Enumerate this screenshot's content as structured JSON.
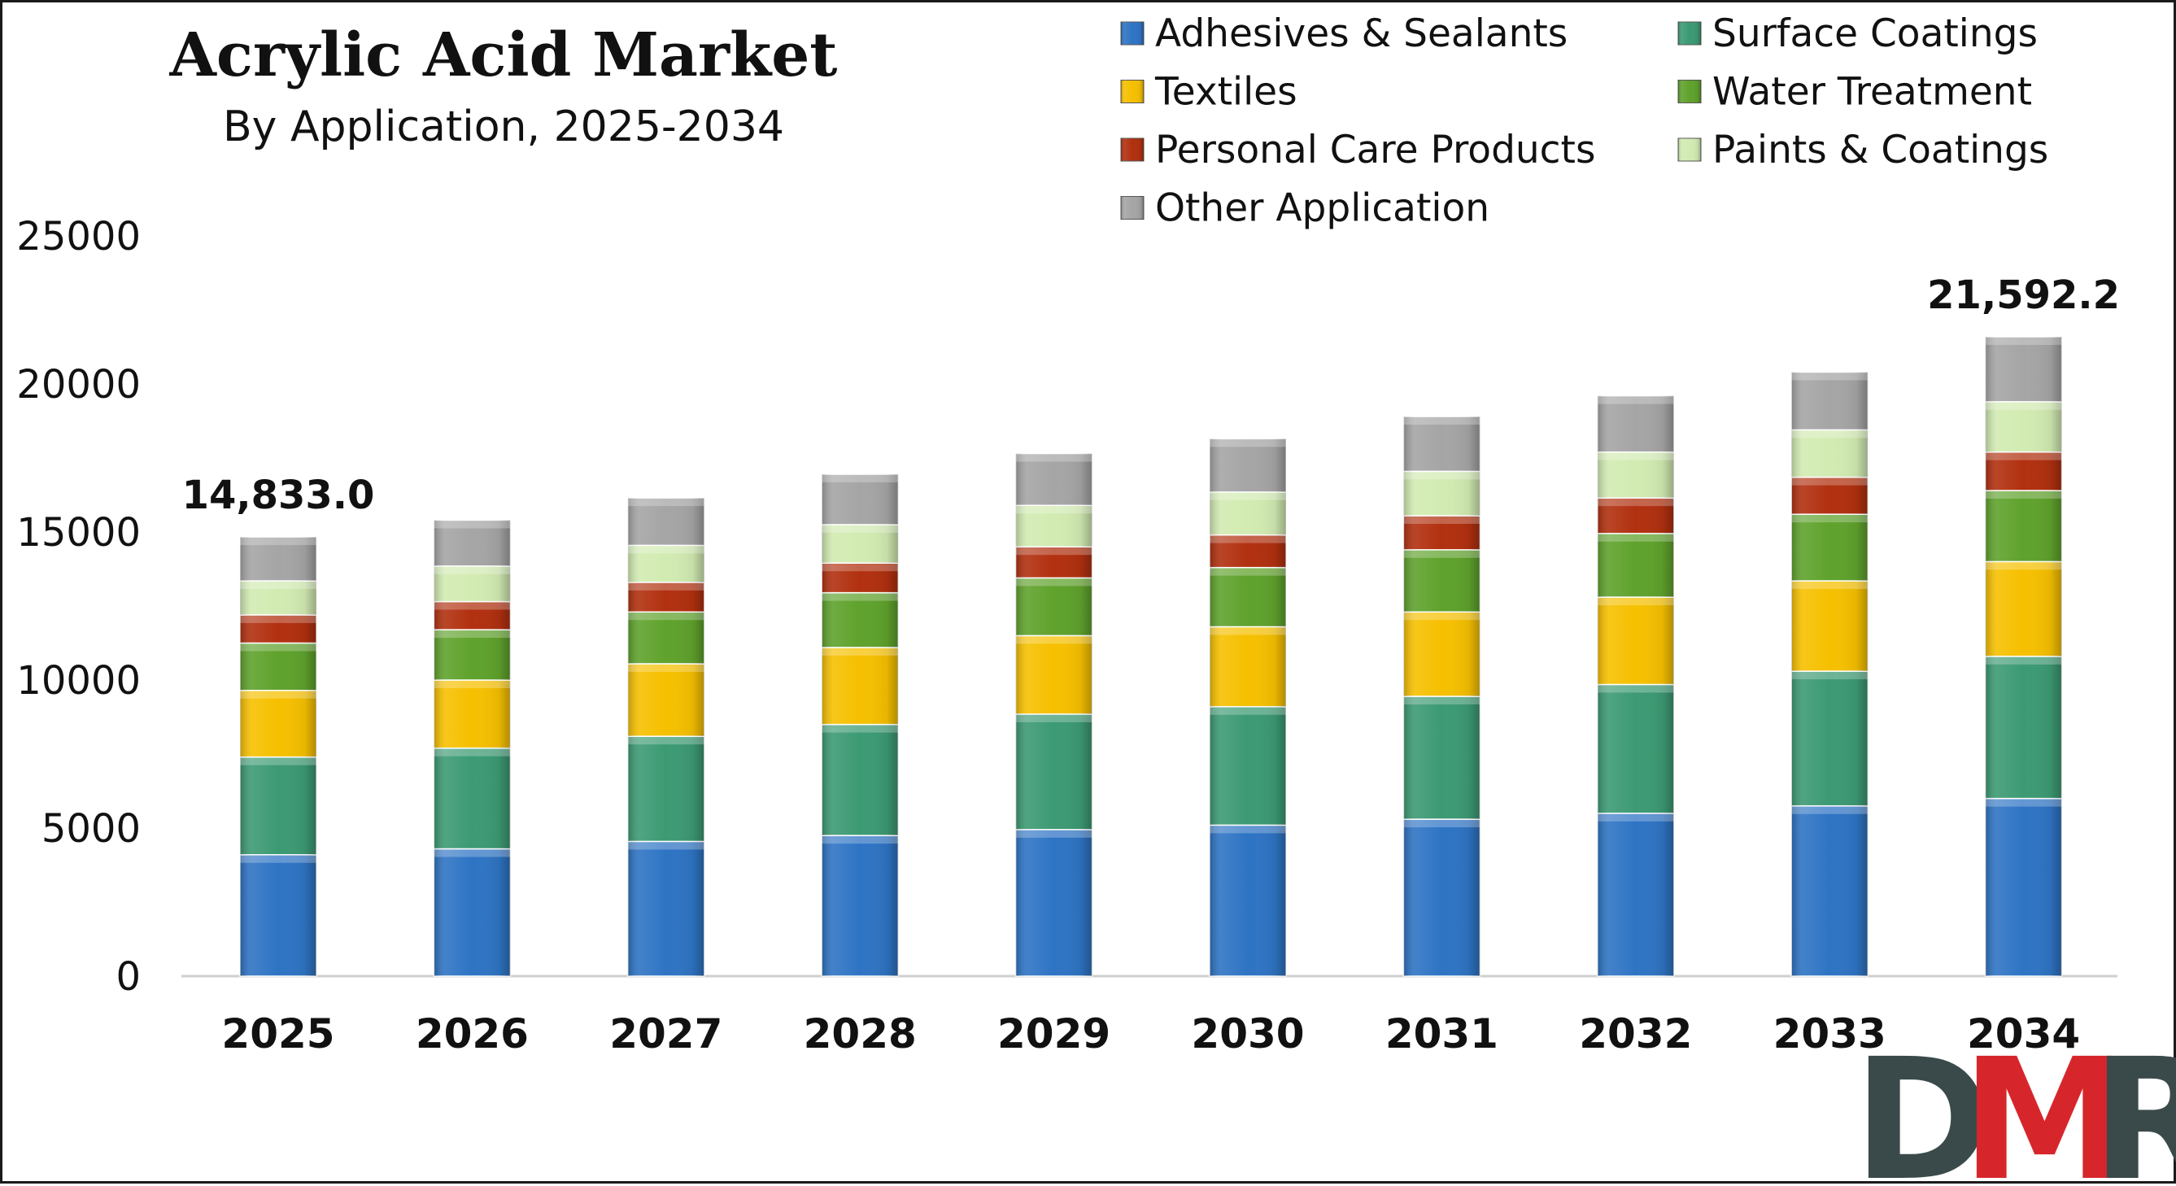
{
  "logo": {
    "text": "DMR",
    "colors": [
      "#3a4a4a",
      "#d7262b",
      "#3a4a4a"
    ]
  },
  "chart_data": {
    "type": "bar",
    "stacked": true,
    "title": "Acrylic Acid Market",
    "subtitle": "By Application, 2025-2034",
    "categories": [
      "2025",
      "2026",
      "2027",
      "2028",
      "2029",
      "2030",
      "2031",
      "2032",
      "2033",
      "2034"
    ],
    "ylim": [
      0,
      25000
    ],
    "yticks": [
      0,
      5000,
      10000,
      15000,
      20000,
      25000
    ],
    "grid": false,
    "legend_position": "top-right",
    "series": [
      {
        "name": "Adhesives & Sealants",
        "color": "#2e74c4",
        "values": [
          4100,
          4300,
          4550,
          4750,
          4950,
          5100,
          5300,
          5500,
          5750,
          6000
        ]
      },
      {
        "name": "Surface Coatings",
        "color": "#3c9a73",
        "values": [
          3300,
          3400,
          3550,
          3750,
          3900,
          4000,
          4150,
          4350,
          4550,
          4800
        ]
      },
      {
        "name": "Textiles",
        "color": "#f6c000",
        "values": [
          2250,
          2300,
          2450,
          2600,
          2650,
          2700,
          2850,
          2950,
          3050,
          3200
        ]
      },
      {
        "name": "Water Treatment",
        "color": "#5fa22c",
        "values": [
          1600,
          1700,
          1750,
          1850,
          1950,
          2000,
          2100,
          2150,
          2250,
          2400
        ]
      },
      {
        "name": "Personal Care Products",
        "color": "#b1300f",
        "values": [
          950,
          950,
          1000,
          1000,
          1050,
          1100,
          1150,
          1200,
          1250,
          1300
        ]
      },
      {
        "name": "Paints & Coatings",
        "color": "#d2ebb2",
        "values": [
          1150,
          1200,
          1250,
          1300,
          1400,
          1450,
          1500,
          1550,
          1600,
          1700
        ]
      },
      {
        "name": "Other Application",
        "color": "#a6a5a6",
        "values": [
          1483,
          1550,
          1600,
          1700,
          1750,
          1800,
          1850,
          1900,
          1950,
          2192
        ]
      }
    ],
    "data_labels": [
      {
        "category": "2025",
        "text": "14,833.0"
      },
      {
        "category": "2034",
        "text": "21,592.2"
      }
    ]
  }
}
